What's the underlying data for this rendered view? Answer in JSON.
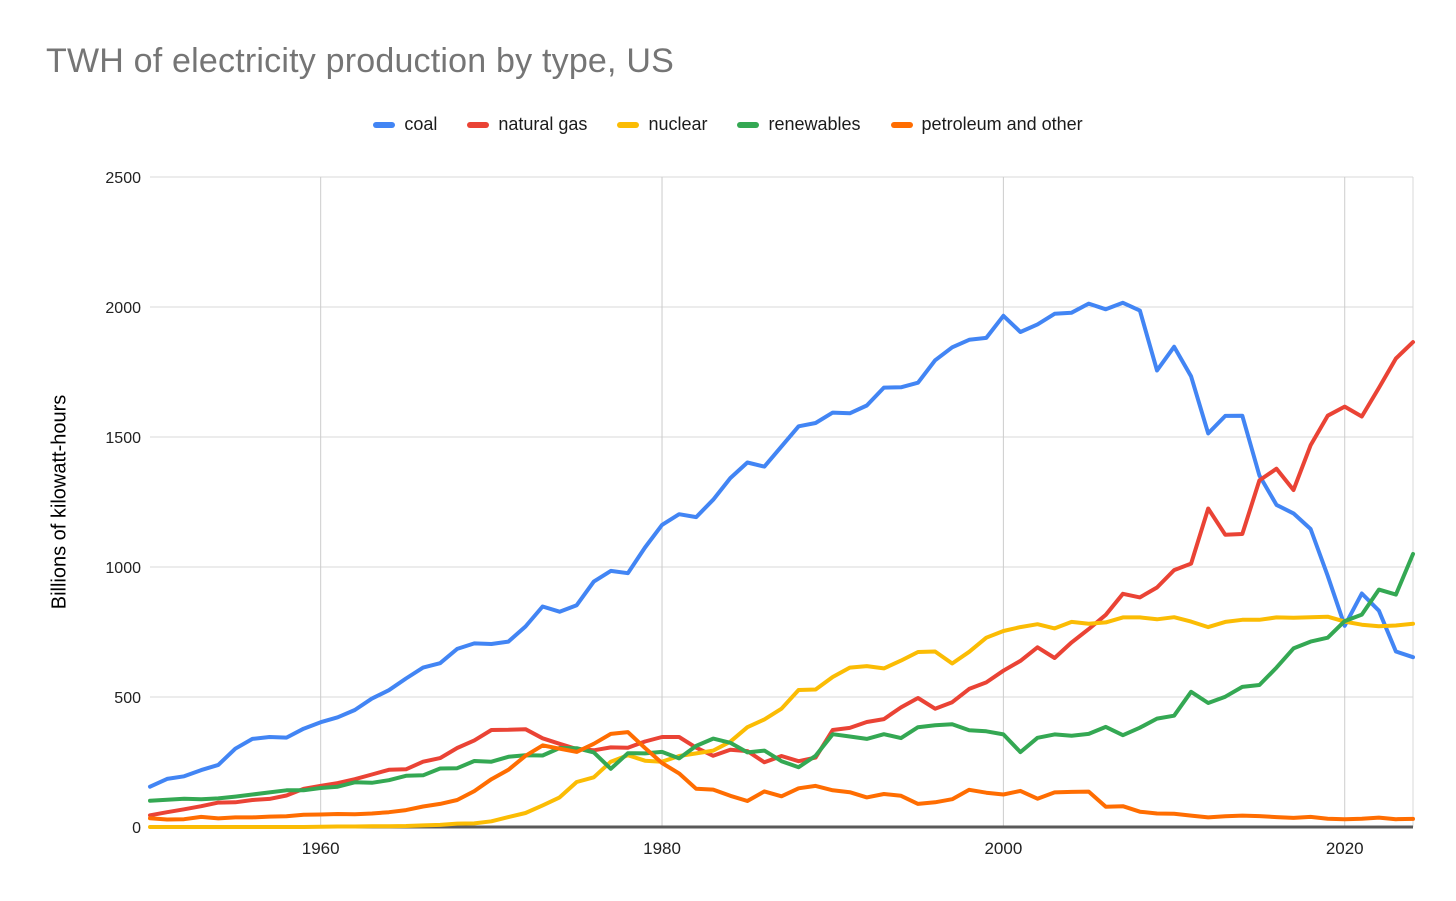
{
  "title": "TWH of electricity production by type, US",
  "chart_data": {
    "type": "line",
    "title": "TWH of electricity production by type, US",
    "xlabel": "",
    "ylabel": "Billions of kilowatt-hours",
    "xlim": [
      1950,
      2024
    ],
    "ylim": [
      0,
      2500
    ],
    "xticks": [
      1960,
      1980,
      2000,
      2020
    ],
    "yticks": [
      0,
      500,
      1000,
      1500,
      2000,
      2500
    ],
    "grid": true,
    "legend_position": "top",
    "grid_color": "#d9d9d9",
    "axis_line_color": "#595959",
    "x": [
      1950,
      1951,
      1952,
      1953,
      1954,
      1955,
      1956,
      1957,
      1958,
      1959,
      1960,
      1961,
      1962,
      1963,
      1964,
      1965,
      1966,
      1967,
      1968,
      1969,
      1970,
      1971,
      1972,
      1973,
      1974,
      1975,
      1976,
      1977,
      1978,
      1979,
      1980,
      1981,
      1982,
      1983,
      1984,
      1985,
      1986,
      1987,
      1988,
      1989,
      1990,
      1991,
      1992,
      1993,
      1994,
      1995,
      1996,
      1997,
      1998,
      1999,
      2000,
      2001,
      2002,
      2003,
      2004,
      2005,
      2006,
      2007,
      2008,
      2009,
      2010,
      2011,
      2012,
      2013,
      2014,
      2015,
      2016,
      2017,
      2018,
      2019,
      2020,
      2021,
      2022,
      2023,
      2024
    ],
    "series": [
      {
        "name": "coal",
        "color": "#4285F4",
        "values": [
          155,
          185,
          195,
          219,
          239,
          301,
          339,
          346,
          344,
          378,
          403,
          422,
          450,
          494,
          526,
          571,
          613,
          630,
          685,
          706,
          704,
          713,
          771,
          848,
          828,
          853,
          944,
          985,
          976,
          1075,
          1162,
          1203,
          1192,
          1259,
          1342,
          1402,
          1386,
          1464,
          1541,
          1554,
          1594,
          1591,
          1621,
          1690,
          1691,
          1709,
          1795,
          1845,
          1874,
          1881,
          1966,
          1904,
          1933,
          1974,
          1978,
          2013,
          1991,
          2016,
          1986,
          1756,
          1847,
          1733,
          1514,
          1581,
          1582,
          1352,
          1239,
          1206,
          1146,
          966,
          774,
          898,
          832,
          675,
          653
        ]
      },
      {
        "name": "natural gas",
        "color": "#EA4335",
        "values": [
          45,
          57,
          68,
          80,
          94,
          95,
          104,
          108,
          121,
          147,
          158,
          169,
          184,
          202,
          220,
          222,
          251,
          265,
          304,
          333,
          373,
          374,
          376,
          341,
          320,
          300,
          295,
          306,
          305,
          329,
          346,
          346,
          305,
          274,
          297,
          292,
          249,
          273,
          253,
          267,
          373,
          381,
          404,
          415,
          460,
          496,
          455,
          480,
          531,
          556,
          601,
          639,
          691,
          650,
          710,
          761,
          816,
          897,
          883,
          921,
          988,
          1013,
          1225,
          1124,
          1127,
          1333,
          1378,
          1296,
          1468,
          1582,
          1617,
          1579,
          1689,
          1802,
          1865
        ]
      },
      {
        "name": "nuclear",
        "color": "#FBBC04",
        "values": [
          0,
          0,
          0,
          0,
          0,
          0,
          0,
          0,
          0,
          0,
          1,
          2,
          2,
          3,
          3,
          4,
          6,
          8,
          13,
          14,
          22,
          38,
          54,
          83,
          114,
          173,
          191,
          251,
          276,
          255,
          251,
          273,
          283,
          294,
          328,
          384,
          414,
          455,
          527,
          529,
          577,
          613,
          619,
          610,
          640,
          673,
          675,
          629,
          674,
          728,
          754,
          769,
          780,
          764,
          789,
          782,
          787,
          806,
          806,
          799,
          807,
          790,
          769,
          789,
          797,
          797,
          806,
          805,
          807,
          809,
          790,
          778,
          772,
          775,
          782
        ]
      },
      {
        "name": "renewables",
        "color": "#34A853",
        "values": [
          101,
          105,
          109,
          107,
          110,
          117,
          125,
          133,
          141,
          141,
          150,
          155,
          172,
          170,
          180,
          197,
          199,
          225,
          226,
          254,
          251,
          270,
          276,
          275,
          304,
          303,
          287,
          224,
          284,
          283,
          289,
          264,
          312,
          340,
          324,
          287,
          294,
          253,
          230,
          274,
          357,
          348,
          339,
          357,
          342,
          384,
          391,
          395,
          372,
          368,
          356,
          288,
          343,
          356,
          351,
          358,
          385,
          353,
          382,
          417,
          428,
          520,
          477,
          501,
          539,
          546,
          613,
          687,
          713,
          728,
          792,
          817,
          913,
          894,
          1050
        ]
      },
      {
        "name": "petroleum and other",
        "color": "#FF6D01",
        "values": [
          34,
          29,
          30,
          39,
          33,
          37,
          37,
          40,
          41,
          47,
          48,
          50,
          49,
          52,
          57,
          65,
          79,
          89,
          104,
          138,
          184,
          220,
          274,
          314,
          301,
          289,
          320,
          358,
          365,
          304,
          246,
          206,
          147,
          144,
          120,
          100,
          137,
          118,
          149,
          158,
          141,
          134,
          114,
          127,
          120,
          89,
          95,
          107,
          143,
          132,
          125,
          139,
          109,
          133,
          135,
          136,
          78,
          80,
          59,
          52,
          51,
          44,
          37,
          41,
          44,
          42,
          38,
          35,
          39,
          32,
          30,
          32,
          36,
          30,
          31
        ]
      }
    ]
  }
}
